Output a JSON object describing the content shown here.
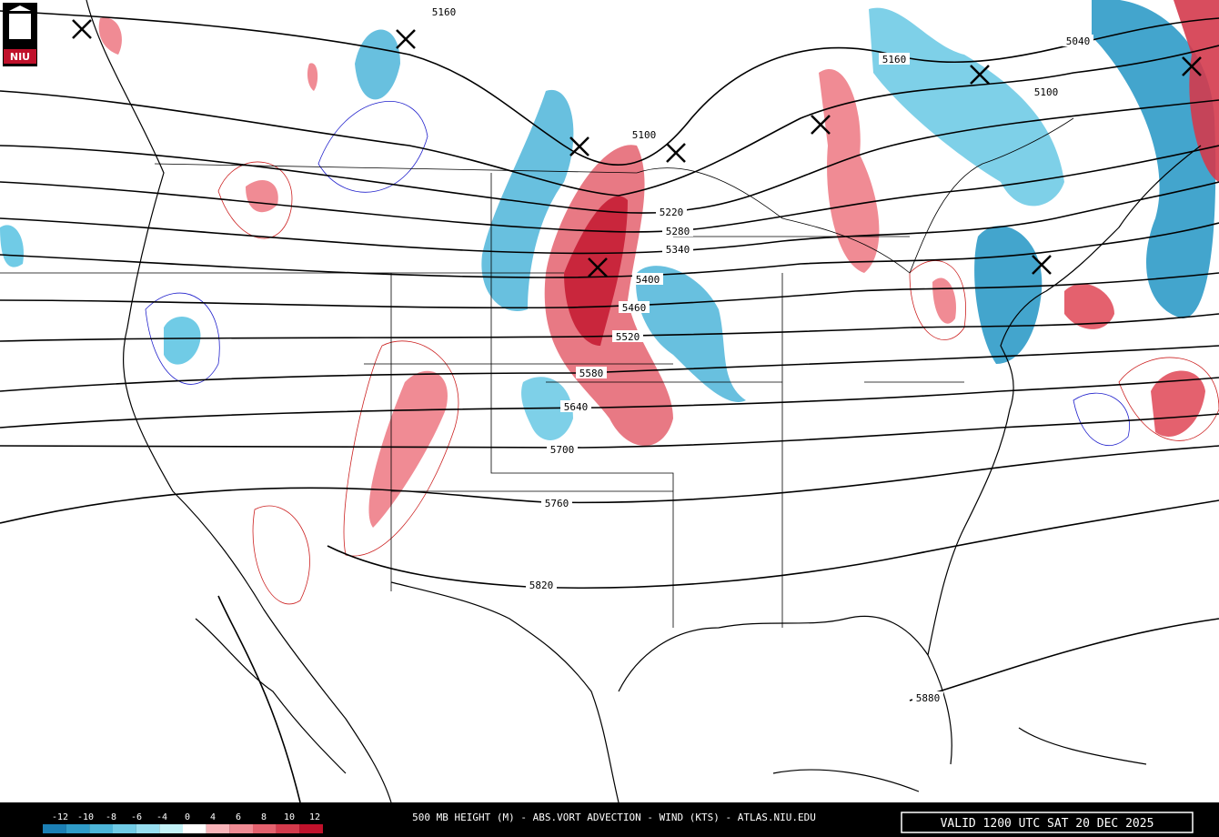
{
  "logo": "NIU",
  "footer": {
    "title": "500 MB HEIGHT (M) - ABS.VORT ADVECTION - WIND (KTS) - ATLAS.NIU.EDU",
    "valid": "VALID 1200 UTC SAT 20 DEC 2025"
  },
  "colorbar": {
    "labels": [
      -12,
      -10,
      -8,
      -6,
      -4,
      0,
      4,
      6,
      8,
      10,
      12
    ],
    "colors": [
      "#1b7fb5",
      "#2f9bc8",
      "#4db5d9",
      "#70cbe6",
      "#97def0",
      "#c3f2f7",
      "#ffffff",
      "#f8b4b9",
      "#f08b94",
      "#e4616e",
      "#d43a4c",
      "#c0112b"
    ]
  },
  "height_labels": [
    "5160",
    "5100",
    "5040",
    "5100",
    "5160",
    "5220",
    "5280",
    "5340",
    "5400",
    "5460",
    "5520",
    "5580",
    "5640",
    "5700",
    "5760",
    "5820",
    "5880"
  ]
}
